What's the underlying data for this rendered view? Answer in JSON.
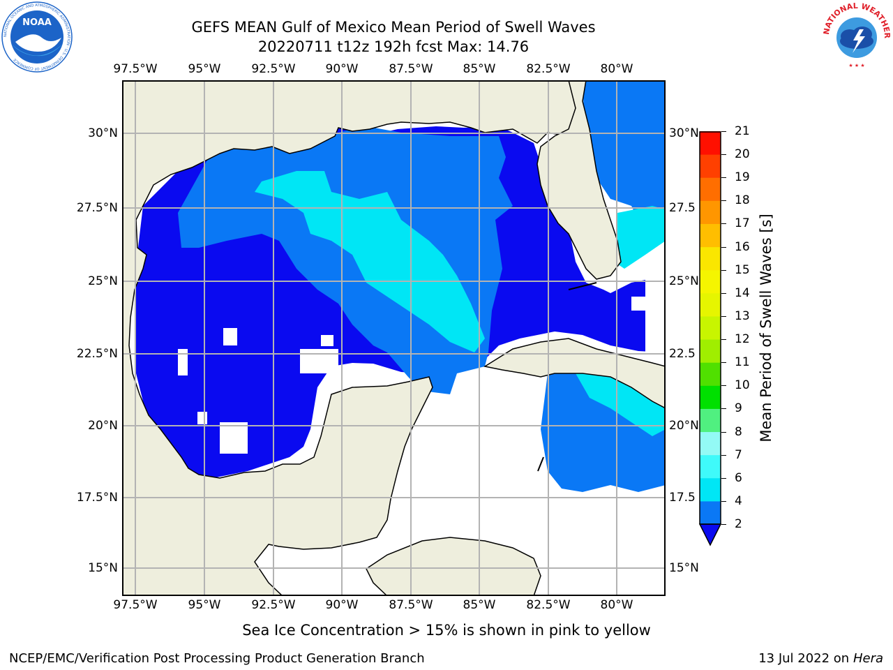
{
  "title": {
    "line1": "GEFS MEAN Gulf of Mexico Mean Period of Swell Waves",
    "line2": "20220711 t12z 192h fcst   Max: 14.76"
  },
  "logos": {
    "left": {
      "name": "NOAA",
      "ring_text": "NATIONAL OCEANIC AND ATMOSPHERIC ADMINISTRATION · U.S. DEPARTMENT OF COMMERCE",
      "colors": {
        "ring": "#ffffff",
        "sky": "#1c64c8",
        "bird": "#ffffff",
        "water": "#3aa0e6"
      }
    },
    "right": {
      "ring_text": "NATIONAL WEATHER SERVICE",
      "colors": {
        "text": "#e0202a",
        "cloud": "#1a4fa8",
        "sky": "#3d9be0"
      }
    }
  },
  "map": {
    "lon_labels": [
      "97.5°W",
      "95°W",
      "92.5°W",
      "90°W",
      "87.5°W",
      "85°W",
      "82.5°W",
      "80°W"
    ],
    "lat_labels_left": [
      "30°N",
      "27.5°N",
      "25°N",
      "22.5°N",
      "20°N",
      "17.5°N",
      "15°N"
    ],
    "lat_labels_right": [
      "30°N",
      "27.5",
      "25°N",
      "22.5",
      "20°N",
      "17.5",
      "15°N"
    ],
    "colors": {
      "land": "#eeeedd",
      "grid": "#b3b3b3",
      "coast": "#000000",
      "missing": "#ffffff"
    }
  },
  "colorbar": {
    "label": "Mean Period of Swell Waves [s]",
    "ticks": [
      "2",
      "4",
      "6",
      "7",
      "8",
      "9",
      "10",
      "11",
      "12",
      "13",
      "14",
      "15",
      "16",
      "17",
      "18",
      "19",
      "20",
      "21"
    ],
    "colors": [
      "#0a0af0",
      "#0a78f5",
      "#00e6f5",
      "#3ffafa",
      "#93faf5",
      "#50f080",
      "#00e000",
      "#50e000",
      "#a0ee00",
      "#c8f500",
      "#e6f500",
      "#f5f500",
      "#fae600",
      "#ffbe00",
      "#ff9600",
      "#ff6e00",
      "#ff4000",
      "#ff1000"
    ]
  },
  "caption": "Sea Ice Concentration > 15% is shown in pink to yellow",
  "footer": {
    "left": "NCEP/EMC/Verification Post Processing Product Generation Branch",
    "right_prefix": "13 Jul 2022 on ",
    "right_host": "Hera"
  }
}
